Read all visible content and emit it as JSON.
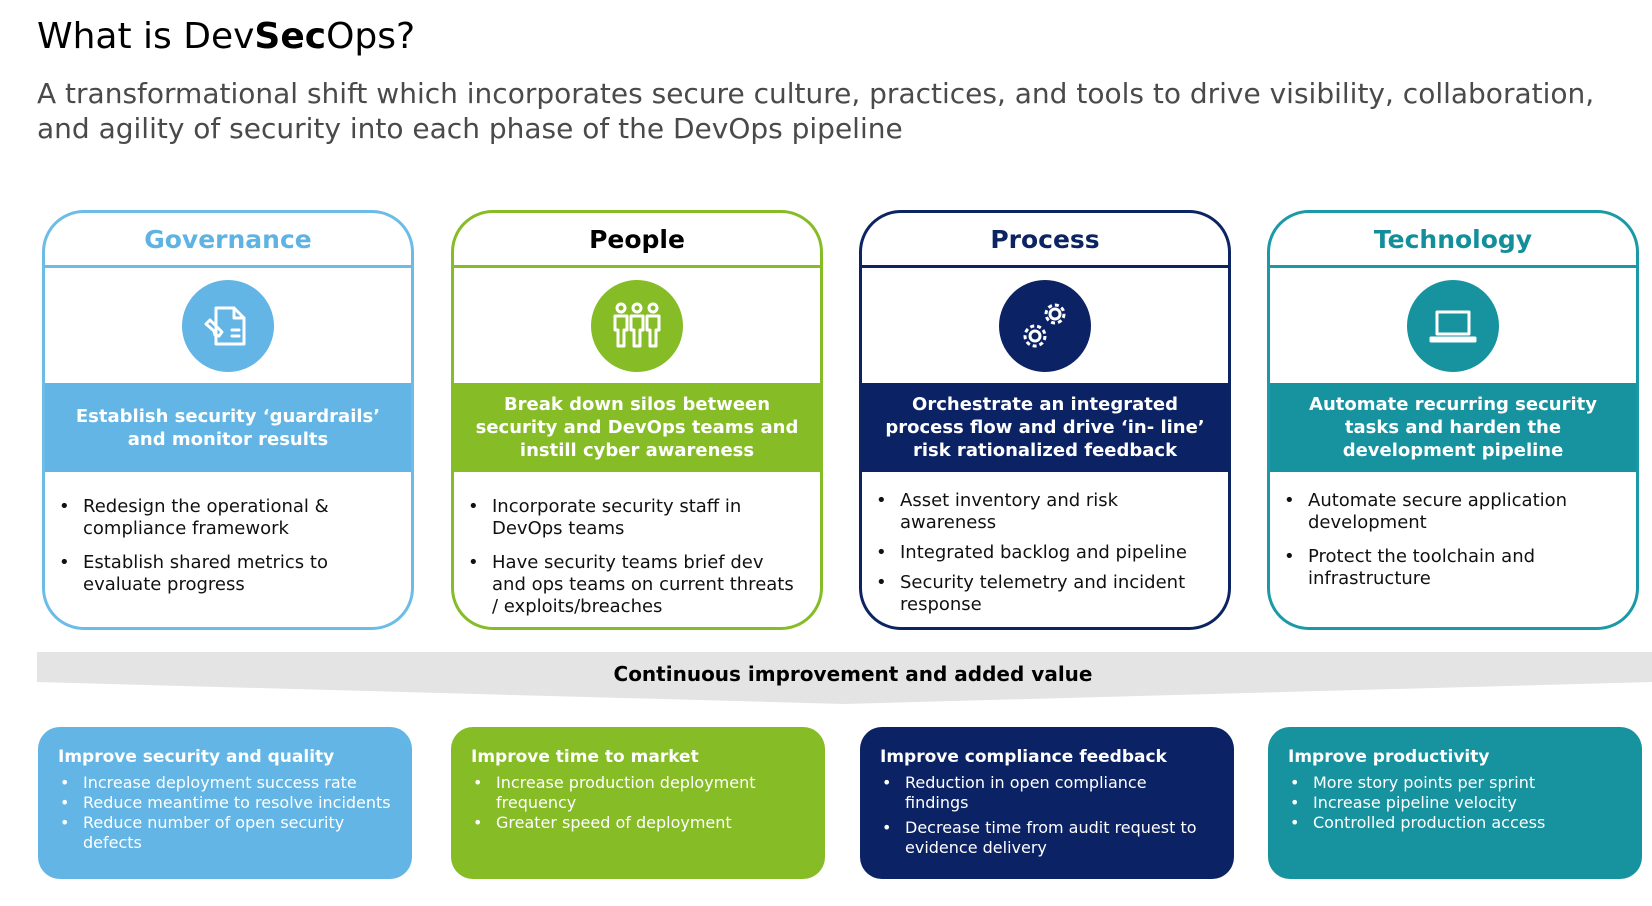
{
  "title": {
    "prefix": "What is Dev",
    "bold": "Sec",
    "suffix": "Ops?"
  },
  "subtitle": "A transformational shift which incorporates secure culture, practices, and tools to drive visibility, collaboration, and agility of security into each phase of the DevOps pipeline",
  "pillars": [
    {
      "heading": "Governance",
      "icon": "document-edit-icon",
      "band": "Establish security ‘guardrails’ and monitor results",
      "bullets": [
        "Redesign the operational & compliance framework",
        "Establish shared metrics to evaluate progress"
      ]
    },
    {
      "heading": "People",
      "icon": "people-icon",
      "band": "Break down silos between security and DevOps teams and instill cyber awareness",
      "bullets": [
        "Incorporate security staff in DevOps teams",
        "Have security teams brief dev and ops teams on current threats / exploits/breaches"
      ]
    },
    {
      "heading": "Process",
      "icon": "gears-icon",
      "band": "Orchestrate an integrated process flow and drive ‘in- line’ risk rationalized feedback",
      "bullets": [
        "Asset inventory and risk awareness",
        "Integrated backlog and pipeline",
        "Security telemetry and incident response"
      ]
    },
    {
      "heading": "Technology",
      "icon": "laptop-icon",
      "band": "Automate recurring security tasks and harden the development pipeline",
      "bullets": [
        "Automate secure application development",
        "Protect the toolchain and infrastructure"
      ]
    }
  ],
  "banner": "Continuous improvement and added value",
  "values": [
    {
      "heading": "Improve security and quality",
      "bullets": [
        "Increase deployment success rate",
        "Reduce meantime to resolve incidents",
        "Reduce number of open security defects"
      ]
    },
    {
      "heading": "Improve time to market",
      "bullets": [
        "Increase production deployment frequency",
        "Greater speed of deployment"
      ]
    },
    {
      "heading": "Improve compliance feedback",
      "bullets": [
        "Reduction in open compliance findings",
        "Decrease time from audit request to evidence delivery"
      ]
    },
    {
      "heading": "Improve productivity",
      "bullets": [
        "More story points per sprint",
        "Increase pipeline velocity",
        "Controlled production access"
      ]
    }
  ],
  "colors": {
    "governance": "#62b5e5",
    "people": "#86bc25",
    "process": "#0b2265",
    "technology": "#17929f",
    "banner": "#e4e4e4"
  }
}
